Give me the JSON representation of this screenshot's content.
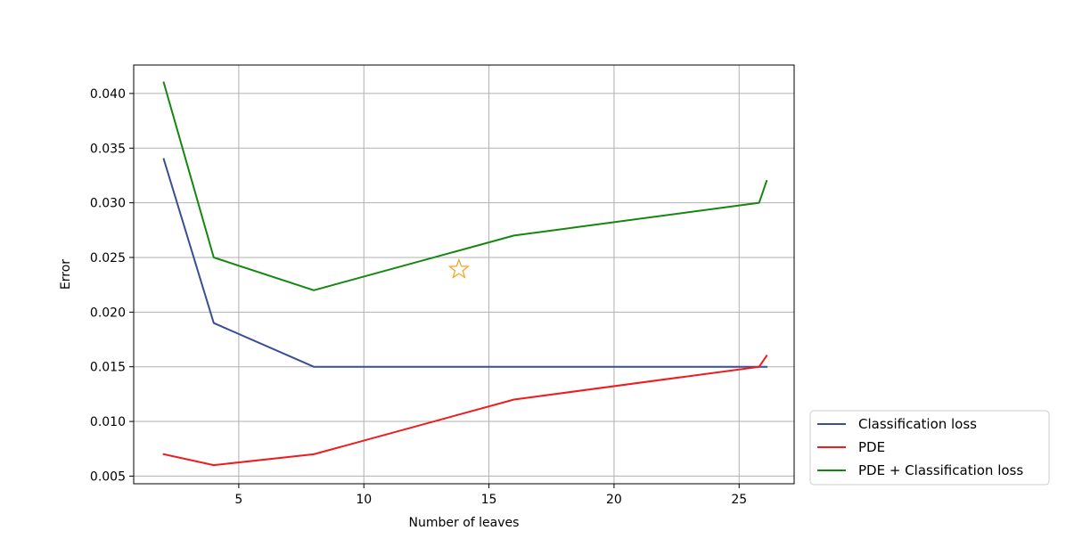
{
  "chart_data": {
    "type": "line",
    "xlabel": "Number of leaves",
    "ylabel": "Error",
    "xlim": [
      0.8,
      27.2
    ],
    "ylim": [
      0.0043,
      0.0426
    ],
    "xticks": [
      5,
      10,
      15,
      20,
      25
    ],
    "xtick_labels": [
      "5",
      "10",
      "15",
      "20",
      "25"
    ],
    "yticks": [
      0.005,
      0.01,
      0.015,
      0.02,
      0.025,
      0.03,
      0.035,
      0.04
    ],
    "ytick_labels": [
      "0.005",
      "0.010",
      "0.015",
      "0.020",
      "0.025",
      "0.030",
      "0.035",
      "0.040"
    ],
    "grid": true,
    "legend_position": "outside-lower-right",
    "series": [
      {
        "name": "Classification loss",
        "color": "#3a4f93",
        "x": [
          2,
          4,
          8,
          16,
          25.8,
          26.1
        ],
        "y": [
          0.034,
          0.019,
          0.015,
          0.015,
          0.015,
          0.015
        ]
      },
      {
        "name": "PDE",
        "color": "#ee1c1c",
        "x": [
          2,
          4,
          8,
          16,
          25.8,
          26.1
        ],
        "y": [
          0.007,
          0.006,
          0.007,
          0.012,
          0.015,
          0.016
        ]
      },
      {
        "name": "PDE + Classification loss",
        "color": "#14870f",
        "x": [
          2,
          4,
          8,
          16,
          25.8,
          26.1
        ],
        "y": [
          0.041,
          0.025,
          0.022,
          0.027,
          0.03,
          0.032
        ]
      }
    ],
    "annotations": [
      {
        "type": "star-marker",
        "x": 13.8,
        "y": 0.0239,
        "color": "#f5a623"
      }
    ]
  }
}
